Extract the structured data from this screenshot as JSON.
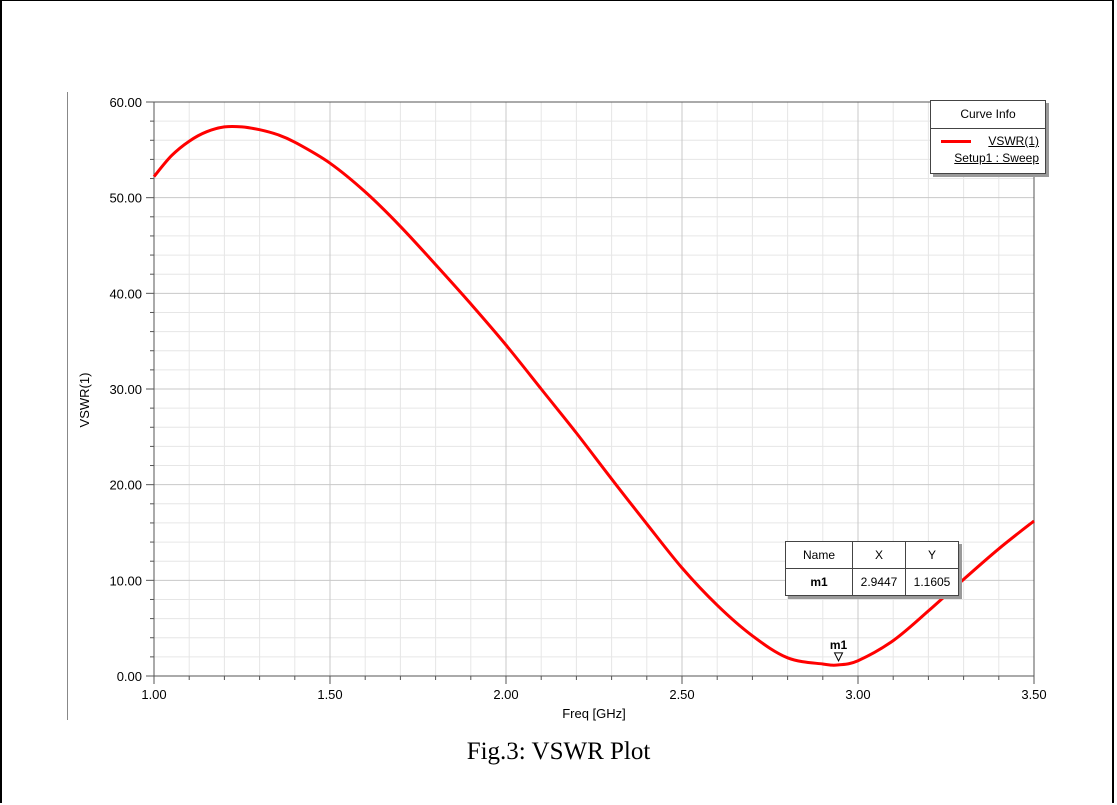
{
  "chart_data": {
    "type": "line",
    "xlabel": "Freq [GHz]",
    "ylabel": "VSWR(1)",
    "xlim": [
      1.0,
      3.5
    ],
    "ylim": [
      0.0,
      60.0
    ],
    "xticks": [
      "1.00",
      "1.50",
      "2.00",
      "2.50",
      "3.00",
      "3.50"
    ],
    "yticks": [
      "0.00",
      "10.00",
      "20.00",
      "30.00",
      "40.00",
      "50.00",
      "60.00"
    ],
    "grid": true,
    "legend_placement": "top-right",
    "series": [
      {
        "name": "VSWR(1)",
        "color": "#ff0000",
        "x": [
          1.0,
          1.05,
          1.1,
          1.15,
          1.2,
          1.25,
          1.3,
          1.35,
          1.4,
          1.5,
          1.6,
          1.7,
          1.8,
          1.9,
          2.0,
          2.1,
          2.2,
          2.3,
          2.4,
          2.5,
          2.6,
          2.7,
          2.8,
          2.9,
          2.9447,
          3.0,
          3.1,
          3.2,
          3.3,
          3.4,
          3.5
        ],
        "y": [
          52.2,
          54.4,
          55.9,
          56.9,
          57.4,
          57.4,
          57.1,
          56.6,
          55.8,
          53.6,
          50.6,
          47.0,
          43.0,
          38.9,
          34.6,
          30.0,
          25.4,
          20.6,
          15.9,
          11.3,
          7.4,
          4.2,
          1.9,
          1.25,
          1.1605,
          1.6,
          3.7,
          6.8,
          10.1,
          13.3,
          16.2
        ]
      }
    ],
    "legend": {
      "title": "Curve Info",
      "series_label": "VSWR(1)",
      "setup_label": "Setup1 : Sweep"
    },
    "marker": {
      "name": "m1",
      "x": 2.9447,
      "y": 1.1605,
      "x_text": "2.9447",
      "y_text": "1.1605",
      "table_headers": [
        "Name",
        "X",
        "Y"
      ]
    }
  },
  "caption": "Fig.3: VSWR Plot"
}
